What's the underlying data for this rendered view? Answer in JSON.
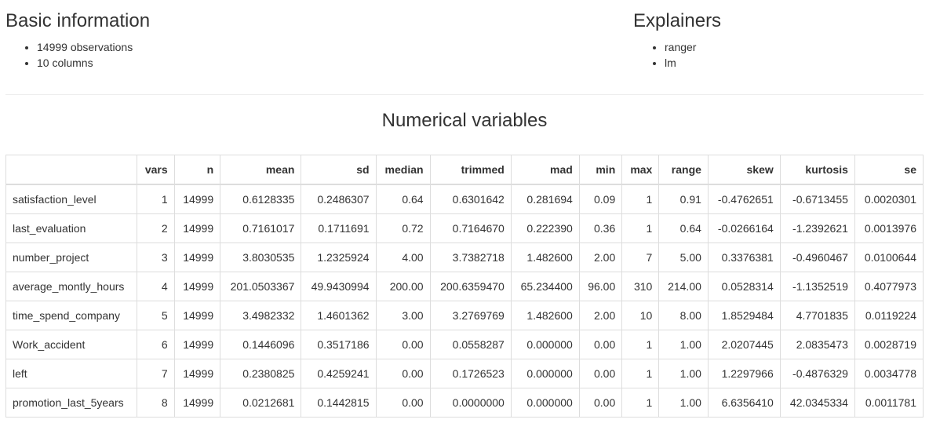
{
  "basic": {
    "title": "Basic information",
    "items": [
      "14999 observations",
      "10 columns"
    ]
  },
  "explainers": {
    "title": "Explainers",
    "items": [
      "ranger",
      "lm"
    ]
  },
  "numerical": {
    "title": "Numerical variables",
    "headers": [
      "",
      "vars",
      "n",
      "mean",
      "sd",
      "median",
      "trimmed",
      "mad",
      "min",
      "max",
      "range",
      "skew",
      "kurtosis",
      "se"
    ],
    "rows": [
      [
        "satisfaction_level",
        "1",
        "14999",
        "0.6128335",
        "0.2486307",
        "0.64",
        "0.6301642",
        "0.281694",
        "0.09",
        "1",
        "0.91",
        "-0.4762651",
        "-0.6713455",
        "0.0020301"
      ],
      [
        "last_evaluation",
        "2",
        "14999",
        "0.7161017",
        "0.1711691",
        "0.72",
        "0.7164670",
        "0.222390",
        "0.36",
        "1",
        "0.64",
        "-0.0266164",
        "-1.2392621",
        "0.0013976"
      ],
      [
        "number_project",
        "3",
        "14999",
        "3.8030535",
        "1.2325924",
        "4.00",
        "3.7382718",
        "1.482600",
        "2.00",
        "7",
        "5.00",
        "0.3376381",
        "-0.4960467",
        "0.0100644"
      ],
      [
        "average_montly_hours",
        "4",
        "14999",
        "201.0503367",
        "49.9430994",
        "200.00",
        "200.6359470",
        "65.234400",
        "96.00",
        "310",
        "214.00",
        "0.0528314",
        "-1.1352519",
        "0.4077973"
      ],
      [
        "time_spend_company",
        "5",
        "14999",
        "3.4982332",
        "1.4601362",
        "3.00",
        "3.2769769",
        "1.482600",
        "2.00",
        "10",
        "8.00",
        "1.8529484",
        "4.7701835",
        "0.0119224"
      ],
      [
        "Work_accident",
        "6",
        "14999",
        "0.1446096",
        "0.3517186",
        "0.00",
        "0.0558287",
        "0.000000",
        "0.00",
        "1",
        "1.00",
        "2.0207445",
        "2.0835473",
        "0.0028719"
      ],
      [
        "left",
        "7",
        "14999",
        "0.2380825",
        "0.4259241",
        "0.00",
        "0.1726523",
        "0.000000",
        "0.00",
        "1",
        "1.00",
        "1.2297966",
        "-0.4876329",
        "0.0034778"
      ],
      [
        "promotion_last_5years",
        "8",
        "14999",
        "0.0212681",
        "0.1442815",
        "0.00",
        "0.0000000",
        "0.000000",
        "0.00",
        "1",
        "1.00",
        "6.6356410",
        "42.0345334",
        "0.0011781"
      ]
    ]
  }
}
